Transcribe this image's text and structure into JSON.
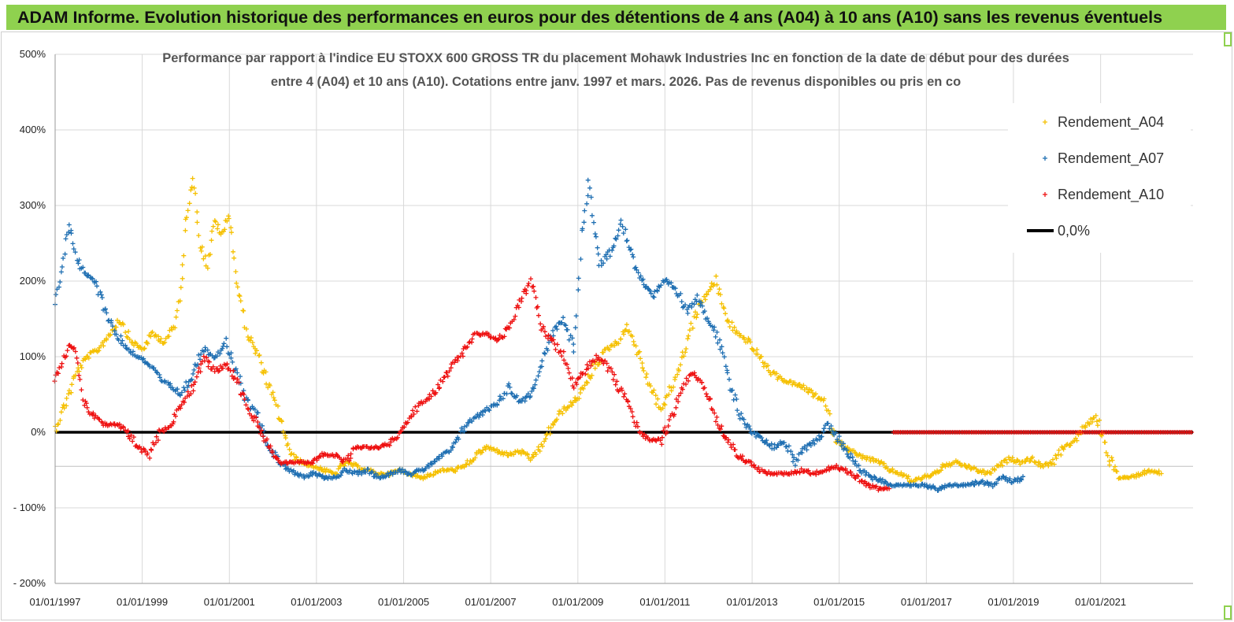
{
  "banner": {
    "text": "ADAM Informe. Evolution historique des performances en euros pour des détentions de 4 ans (A04) à 10 ans (A10) sans les revenus éventuels",
    "color": "#8fd14f"
  },
  "chart_data": {
    "type": "scatter",
    "title_line1": "Performance par rapport à l'indice EU STOXX 600 GROSS TR  du placement Mohawk Industries Inc en fonction de la date de début pour des durées",
    "title_line2": "entre 4 (A04) et 10 ans (A10). Cotations entre janv. 1997 et mars. 2026. Pas de revenus disponibles ou pris en co",
    "xlabel": "",
    "ylabel": "",
    "xlim": [
      "1997-01-01",
      "2023-02-15"
    ],
    "ylim": [
      -200,
      500
    ],
    "y_ticks": [
      500,
      400,
      300,
      200,
      100,
      0,
      -100,
      -200
    ],
    "y_tick_labels": [
      "500%",
      "400%",
      "300%",
      "200%",
      "100%",
      "0%",
      "- 100%",
      "- 200%"
    ],
    "x_ticks": [
      "1997-01-01",
      "1999-01-01",
      "2001-01-01",
      "2003-01-01",
      "2005-01-01",
      "2007-01-01",
      "2009-01-01",
      "2011-01-01",
      "2013-01-01",
      "2015-01-01",
      "2017-01-01",
      "2019-01-01",
      "2021-01-01"
    ],
    "x_tick_labels": [
      "01/01/1997",
      "01/01/1999",
      "01/01/2001",
      "01/01/2003",
      "01/01/2005",
      "01/01/2007",
      "01/01/2009",
      "01/01/2011",
      "01/01/2013",
      "01/01/2015",
      "01/01/2017",
      "01/01/2019",
      "01/01/2021"
    ],
    "grid": true,
    "legend_position": "top-right",
    "series": [
      {
        "name": "Rendement_A04",
        "color": "#f5c000",
        "marker": "+",
        "x": [
          "1997-01-01",
          "1997-04-01",
          "1997-07-01",
          "1997-10-01",
          "1998-01-01",
          "1998-04-01",
          "1998-07-01",
          "1998-10-01",
          "1999-01-01",
          "1999-04-01",
          "1999-07-01",
          "1999-10-01",
          "1999-12-01",
          "2000-01-01",
          "2000-03-01",
          "2000-05-01",
          "2000-07-01",
          "2000-09-01",
          "2000-11-01",
          "2001-01-01",
          "2001-03-01",
          "2001-06-01",
          "2001-09-01",
          "2001-12-01",
          "2002-03-01",
          "2002-06-01",
          "2002-09-01",
          "2002-12-01",
          "2003-03-01",
          "2003-06-01",
          "2003-09-01",
          "2003-12-01",
          "2004-03-01",
          "2004-06-01",
          "2004-09-01",
          "2004-12-01",
          "2005-03-01",
          "2005-06-01",
          "2005-09-01",
          "2005-12-01",
          "2006-03-01",
          "2006-06-01",
          "2006-09-01",
          "2006-12-01",
          "2007-03-01",
          "2007-06-01",
          "2007-09-01",
          "2007-12-01",
          "2008-03-01",
          "2008-06-01",
          "2008-09-01",
          "2008-12-01",
          "2009-03-01",
          "2009-06-01",
          "2009-09-01",
          "2009-12-01",
          "2010-03-01",
          "2010-06-01",
          "2010-09-01",
          "2010-12-01",
          "2011-03-01",
          "2011-06-01",
          "2011-09-01",
          "2011-12-01",
          "2012-03-01",
          "2012-06-01",
          "2012-09-01",
          "2012-12-01",
          "2013-03-01",
          "2013-06-01",
          "2013-09-01",
          "2013-12-01",
          "2014-03-01",
          "2014-06-01",
          "2014-09-01",
          "2014-12-01",
          "2015-03-01",
          "2015-06-01",
          "2015-09-01",
          "2015-12-01",
          "2016-03-01",
          "2016-06-01",
          "2016-09-01",
          "2016-12-01",
          "2017-03-01",
          "2017-06-01",
          "2017-09-01",
          "2017-12-01",
          "2018-03-01",
          "2018-06-01",
          "2018-09-01",
          "2018-12-01",
          "2019-03-01",
          "2019-06-01",
          "2019-09-01",
          "2019-12-01",
          "2020-03-01",
          "2020-06-01",
          "2020-09-01",
          "2020-12-01",
          "2021-03-01",
          "2021-06-01",
          "2021-09-01",
          "2021-12-01",
          "2022-03-01",
          "2022-06-01"
        ],
        "y": [
          5,
          40,
          80,
          100,
          110,
          130,
          150,
          120,
          110,
          130,
          120,
          140,
          200,
          280,
          340,
          250,
          220,
          280,
          260,
          290,
          200,
          130,
          100,
          60,
          20,
          -30,
          -40,
          -45,
          -50,
          -55,
          -40,
          -45,
          -50,
          -55,
          -55,
          -50,
          -55,
          -60,
          -55,
          -50,
          -50,
          -45,
          -30,
          -20,
          -25,
          -30,
          -25,
          -35,
          -20,
          10,
          30,
          40,
          60,
          90,
          110,
          120,
          140,
          100,
          60,
          30,
          60,
          100,
          150,
          180,
          200,
          150,
          130,
          120,
          100,
          80,
          70,
          65,
          60,
          50,
          40,
          -10,
          -20,
          -30,
          -35,
          -40,
          -50,
          -55,
          -65,
          -60,
          -55,
          -45,
          -40,
          -45,
          -50,
          -55,
          -45,
          -35,
          -40,
          -35,
          -45,
          -40,
          -20,
          -10,
          10,
          20,
          -30,
          -60,
          -60,
          -55,
          -50,
          -55
        ]
      },
      {
        "name": "Rendement_A07",
        "color": "#1f6fb2",
        "marker": "+",
        "x": [
          "1997-01-01",
          "1997-03-01",
          "1997-05-01",
          "1997-07-01",
          "1997-09-01",
          "1997-12-01",
          "1998-03-01",
          "1998-06-01",
          "1998-09-01",
          "1998-12-01",
          "1999-03-01",
          "1999-06-01",
          "1999-09-01",
          "1999-12-01",
          "2000-03-01",
          "2000-06-01",
          "2000-09-01",
          "2000-12-01",
          "2001-03-01",
          "2001-06-01",
          "2001-09-01",
          "2001-12-01",
          "2002-03-01",
          "2002-06-01",
          "2002-09-01",
          "2002-12-01",
          "2003-03-01",
          "2003-06-01",
          "2003-09-01",
          "2003-12-01",
          "2004-03-01",
          "2004-06-01",
          "2004-09-01",
          "2004-12-01",
          "2005-03-01",
          "2005-06-01",
          "2005-09-01",
          "2005-12-01",
          "2006-03-01",
          "2006-06-01",
          "2006-09-01",
          "2006-12-01",
          "2007-03-01",
          "2007-06-01",
          "2007-09-01",
          "2007-12-01",
          "2008-03-01",
          "2008-06-01",
          "2008-09-01",
          "2008-12-01",
          "2009-02-01",
          "2009-04-01",
          "2009-07-01",
          "2009-10-01",
          "2010-01-01",
          "2010-04-01",
          "2010-07-01",
          "2010-10-01",
          "2011-01-01",
          "2011-04-01",
          "2011-07-01",
          "2011-10-01",
          "2012-01-01",
          "2012-04-01",
          "2012-07-01",
          "2012-10-01",
          "2013-01-01",
          "2013-04-01",
          "2013-07-01",
          "2013-10-01",
          "2014-01-01",
          "2014-04-01",
          "2014-07-01",
          "2014-10-01",
          "2015-01-01",
          "2015-04-01",
          "2015-07-01",
          "2015-10-01",
          "2016-01-01",
          "2016-04-01",
          "2016-07-01",
          "2016-10-01",
          "2017-01-01",
          "2017-04-01",
          "2017-07-01",
          "2017-10-01",
          "2018-01-01",
          "2018-04-01",
          "2018-07-01",
          "2018-10-01",
          "2019-01-01",
          "2019-04-01"
        ],
        "y": [
          170,
          220,
          280,
          230,
          210,
          200,
          160,
          130,
          110,
          100,
          90,
          70,
          60,
          50,
          80,
          110,
          100,
          120,
          80,
          40,
          20,
          -20,
          -40,
          -50,
          -60,
          -55,
          -60,
          -60,
          -50,
          -55,
          -50,
          -60,
          -55,
          -50,
          -55,
          -50,
          -40,
          -30,
          -20,
          10,
          20,
          30,
          40,
          60,
          40,
          50,
          90,
          130,
          150,
          110,
          260,
          330,
          220,
          240,
          280,
          230,
          200,
          180,
          200,
          190,
          160,
          180,
          150,
          120,
          60,
          20,
          0,
          -10,
          -20,
          -10,
          -40,
          -20,
          -10,
          10,
          -10,
          -30,
          -50,
          -60,
          -65,
          -70,
          -70,
          -70,
          -70,
          -75,
          -70,
          -70,
          -70,
          -65,
          -70,
          -60,
          -65,
          -60
        ]
      },
      {
        "name": "Rendement_A10",
        "color": "#ee1111",
        "marker": "+",
        "x": [
          "1997-01-01",
          "1997-03-01",
          "1997-05-01",
          "1997-07-01",
          "1997-09-01",
          "1997-12-01",
          "1998-03-01",
          "1998-06-01",
          "1998-09-01",
          "1998-12-01",
          "1999-03-01",
          "1999-06-01",
          "1999-09-01",
          "1999-12-01",
          "2000-03-01",
          "2000-06-01",
          "2000-09-01",
          "2000-12-01",
          "2001-03-01",
          "2001-06-01",
          "2001-09-01",
          "2001-12-01",
          "2002-03-01",
          "2002-06-01",
          "2002-09-01",
          "2002-12-01",
          "2003-03-01",
          "2003-06-01",
          "2003-09-01",
          "2003-12-01",
          "2004-03-01",
          "2004-06-01",
          "2004-09-01",
          "2004-12-01",
          "2005-03-01",
          "2005-06-01",
          "2005-09-01",
          "2005-12-01",
          "2006-03-01",
          "2006-06-01",
          "2006-09-01",
          "2006-12-01",
          "2007-03-01",
          "2007-06-01",
          "2007-09-01",
          "2007-12-01",
          "2008-03-01",
          "2008-06-01",
          "2008-09-01",
          "2008-12-01",
          "2009-03-01",
          "2009-06-01",
          "2009-09-01",
          "2009-12-01",
          "2010-03-01",
          "2010-06-01",
          "2010-09-01",
          "2010-12-01",
          "2011-03-01",
          "2011-06-01",
          "2011-09-01",
          "2011-12-01",
          "2012-03-01",
          "2012-06-01",
          "2012-09-01",
          "2012-12-01",
          "2013-03-01",
          "2013-06-01",
          "2013-09-01",
          "2013-12-01",
          "2014-03-01",
          "2014-06-01",
          "2014-09-01",
          "2014-12-01",
          "2015-03-01",
          "2015-06-01",
          "2015-09-01",
          "2015-12-01",
          "2016-03-01"
        ],
        "y": [
          70,
          90,
          120,
          100,
          40,
          20,
          10,
          10,
          0,
          -20,
          -30,
          0,
          10,
          40,
          60,
          100,
          80,
          90,
          70,
          30,
          10,
          -20,
          -40,
          -40,
          -40,
          -40,
          -30,
          -30,
          -40,
          -20,
          -20,
          -20,
          -15,
          0,
          20,
          40,
          50,
          70,
          90,
          110,
          130,
          130,
          120,
          140,
          170,
          200,
          140,
          120,
          100,
          60,
          80,
          100,
          90,
          60,
          40,
          0,
          -10,
          -10,
          20,
          60,
          80,
          60,
          20,
          -10,
          -30,
          -40,
          -50,
          -55,
          -55,
          -55,
          -50,
          -55,
          -50,
          -45,
          -50,
          -60,
          -70,
          -75,
          -75
        ]
      },
      {
        "name": "0,0%",
        "color": "#000000",
        "marker": "line"
      }
    ],
    "a10_zero_fill": {
      "x_start": "2016-04-01",
      "x_end": "2023-02-15",
      "y": 0
    },
    "reference_line_minus_45": -45
  }
}
